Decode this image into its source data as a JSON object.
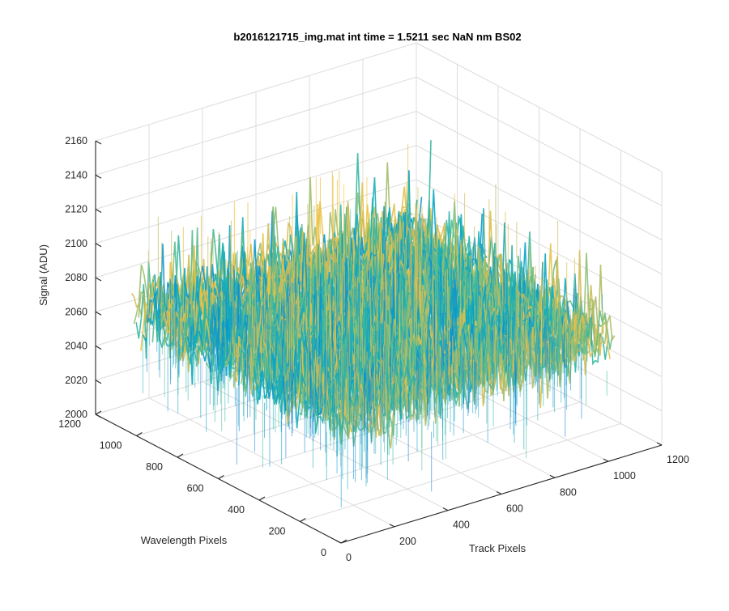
{
  "chart_data": {
    "type": "surface",
    "title": "b2016121715_img.mat int time = 1.5211 sec  NaN nm BS02",
    "xlabel": "Track Pixels",
    "ylabel": "Wavelength Pixels",
    "zlabel": "Signal (ADU)",
    "xlim": [
      0,
      1200
    ],
    "ylim": [
      0,
      1200
    ],
    "zlim": [
      2000,
      2160
    ],
    "xticks": [
      "0",
      "200",
      "400",
      "600",
      "800",
      "1000",
      "1200"
    ],
    "yticks": [
      "0",
      "200",
      "400",
      "600",
      "800",
      "1000",
      "1200"
    ],
    "zticks": [
      "2000",
      "2020",
      "2040",
      "2060",
      "2080",
      "2100",
      "2120",
      "2140",
      "2160"
    ],
    "grid": true,
    "colormap": "parula",
    "surface": {
      "data_extent_x": [
        0,
        1024
      ],
      "data_extent_y": [
        0,
        1024
      ],
      "mean_signal": 2072,
      "noise_spread": 18,
      "max_signal": 2150,
      "min_signal": 2025
    }
  }
}
